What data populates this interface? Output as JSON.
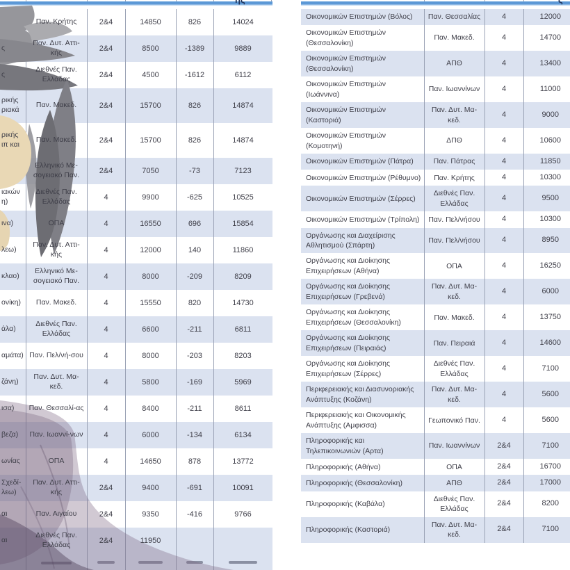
{
  "palette": {
    "stripe": "#dbe2f0",
    "separator": "#99a1b4",
    "header_rule_blue": "#4d8ed2",
    "text": "#3f3f49",
    "silhouette_hair_gray": "#7a7a80",
    "silhouette_skin_beige": "#e9d8b5",
    "silhouette_body_mauve": "#9c84a2"
  },
  "left_table": {
    "header_remnant": "ης",
    "columns": [
      "dept",
      "univ",
      "years",
      "v1",
      "v2",
      "v3"
    ],
    "rows": [
      {
        "dept": "",
        "univ": "Παν. Κρήτης",
        "years": "2&4",
        "v1": "14850",
        "v2": "826",
        "v3": "14024"
      },
      {
        "dept": "ς",
        "univ": "Παν. Δυτ. Αττι-κής",
        "years": "2&4",
        "v1": "8500",
        "v2": "-1389",
        "v3": "9889"
      },
      {
        "dept": "ς",
        "univ": "Διεθνές Παν. Ελλάδας",
        "years": "2&4",
        "v1": "4500",
        "v2": "-1612",
        "v3": "6112"
      },
      {
        "dept": "ρικής ριακά",
        "univ": "Παν. Μακεδ.",
        "years": "2&4",
        "v1": "15700",
        "v2": "826",
        "v3": "14874",
        "tall": true
      },
      {
        "dept": "ρικής ιπ και",
        "univ": "Παν. Μακεδ.",
        "years": "2&4",
        "v1": "15700",
        "v2": "826",
        "v3": "14874",
        "tall": true
      },
      {
        "dept": "",
        "univ": "Ελληνικό Με-σογειακό Παν.",
        "years": "2&4",
        "v1": "7050",
        "v2": "-73",
        "v3": "7123"
      },
      {
        "dept": "ιακών η)",
        "univ": "Διεθνές Παν. Ελλάδας",
        "years": "4",
        "v1": "9900",
        "v2": "-625",
        "v3": "10525"
      },
      {
        "dept": "ινα)",
        "univ": "ΟΠΑ",
        "years": "4",
        "v1": "16550",
        "v2": "696",
        "v3": "15854"
      },
      {
        "dept": "λεω)",
        "univ": "Παν. Δυτ. Αττι-κής",
        "years": "4",
        "v1": "12000",
        "v2": "140",
        "v3": "11860"
      },
      {
        "dept": "κλαο)",
        "univ": "Ελληνικό Με-σογειακό Παν.",
        "years": "4",
        "v1": "8000",
        "v2": "-209",
        "v3": "8209"
      },
      {
        "dept": "ονίκη)",
        "univ": "Παν. Μακεδ.",
        "years": "4",
        "v1": "15550",
        "v2": "820",
        "v3": "14730"
      },
      {
        "dept": "άλα)",
        "univ": "Διεθνές Παν. Ελλάδας",
        "years": "4",
        "v1": "6600",
        "v2": "-211",
        "v3": "6811"
      },
      {
        "dept": "αμάτα)",
        "univ": "Παν. Πελ/νή-σου",
        "years": "4",
        "v1": "8000",
        "v2": "-203",
        "v3": "8203"
      },
      {
        "dept": "ζάνη)",
        "univ": "Παν. Δυτ. Μα-κεδ.",
        "years": "4",
        "v1": "5800",
        "v2": "-169",
        "v3": "5969"
      },
      {
        "dept": "ισα)",
        "univ": "Παν. Θεσσαλί-ας",
        "years": "4",
        "v1": "8400",
        "v2": "-211",
        "v3": "8611"
      },
      {
        "dept": "βεζα)",
        "univ": "Παν. Ιωαννί-νων",
        "years": "4",
        "v1": "6000",
        "v2": "-134",
        "v3": "6134"
      },
      {
        "dept": "ωνίας",
        "univ": "ΟΠΑ",
        "years": "4",
        "v1": "14650",
        "v2": "878",
        "v3": "13772"
      },
      {
        "dept": "Σχεδί- λεω)",
        "univ": "Παν. Δυτ. Αττι-κής",
        "years": "2&4",
        "v1": "9400",
        "v2": "-691",
        "v3": "10091"
      },
      {
        "dept": "αι",
        "univ": "Παν. Αιγαίου",
        "years": "2&4",
        "v1": "9350",
        "v2": "-416",
        "v3": "9766"
      },
      {
        "dept": "αι",
        "univ": "Διεθνές Παν. Ελλάδας",
        "years": "2&4",
        "v1": "11950",
        "v2": "",
        "v3": ""
      },
      {
        "dept": "",
        "univ": "",
        "years": "",
        "v1": "",
        "v2": "",
        "v3": "",
        "smudge": true
      }
    ]
  },
  "right_table": {
    "header_remnant": "ς",
    "columns": [
      "dept",
      "univ",
      "years",
      "v1"
    ],
    "rows": [
      {
        "dept": "Οικονομικών Επιστημών (Βόλος)",
        "univ": "Παν. Θεσσαλίας",
        "years": "4",
        "v1": "12000"
      },
      {
        "dept": "Οικονομικών Επιστημών (Θεσσαλονίκη)",
        "univ": "Παν. Μακεδ.",
        "years": "4",
        "v1": "14700"
      },
      {
        "dept": "Οικονομικών Επιστημών (Θεσσαλονίκη)",
        "univ": "ΑΠΘ",
        "years": "4",
        "v1": "13400"
      },
      {
        "dept": "Οικονομικών Επιστημών (Ιωάννινα)",
        "univ": "Παν. Ιωαννίνων",
        "years": "4",
        "v1": "11000"
      },
      {
        "dept": "Οικονομικών Επιστημών (Καστοριά)",
        "univ": "Παν. Δυτ. Μα-κεδ.",
        "years": "4",
        "v1": "9000"
      },
      {
        "dept": "Οικονομικών Επιστημών (Κομοτηνή)",
        "univ": "ΔΠΘ",
        "years": "4",
        "v1": "10600"
      },
      {
        "dept": "Οικονομικών Επιστημών (Πάτρα)",
        "univ": "Παν. Πάτρας",
        "years": "4",
        "v1": "11850"
      },
      {
        "dept": "Οικονομικών Επιστημών (Ρέθυμνο)",
        "univ": "Παν. Κρήτης",
        "years": "4",
        "v1": "10300"
      },
      {
        "dept": "Οικονομικών Επιστημών (Σέρρες)",
        "univ": "Διεθνές Παν. Ελλάδας",
        "years": "4",
        "v1": "9500"
      },
      {
        "dept": "Οικονομικών Επιστημών (Τρίπολη)",
        "univ": "Παν. Πελ/νήσου",
        "years": "4",
        "v1": "10300"
      },
      {
        "dept": "Οργάνωσης και Διαχείρισης Αθλητισμού (Σπάρτη)",
        "univ": "Παν. Πελ/νήσου",
        "years": "4",
        "v1": "8950"
      },
      {
        "dept": "Οργάνωσης και Διοίκησης Επιχειρήσεων (Αθήνα)",
        "univ": "ΟΠΑ",
        "years": "4",
        "v1": "16250"
      },
      {
        "dept": "Οργάνωσης και Διοίκησης Επιχειρήσεων (Γρεβενά)",
        "univ": "Παν. Δυτ. Μα-κεδ.",
        "years": "4",
        "v1": "6000"
      },
      {
        "dept": "Οργάνωσης και Διοίκησης Επιχειρήσεων (Θεσσαλονίκη)",
        "univ": "Παν. Μακεδ.",
        "years": "4",
        "v1": "13750"
      },
      {
        "dept": "Οργάνωσης και Διοίκησης Επιχειρήσεων (Πειραιάς)",
        "univ": "Παν. Πειραιά",
        "years": "4",
        "v1": "14600"
      },
      {
        "dept": "Οργάνωσης και Διοίκησης Επιχειρήσεων (Σέρρες)",
        "univ": "Διεθνές Παν. Ελλάδας",
        "years": "4",
        "v1": "7100"
      },
      {
        "dept": "Περιφερειακής και Διασυνοριακής Ανάπτυξης (Κοζάνη)",
        "univ": "Παν. Δυτ. Μα-κεδ.",
        "years": "4",
        "v1": "5600"
      },
      {
        "dept": "Περιφερειακής και Οικονομικής Ανάπτυξης  (Αμφισσα)",
        "univ": "Γεωπονικό Παν.",
        "years": "4",
        "v1": "5600"
      },
      {
        "dept": "Πληροφορικής  και Τηλεπικοινωνιών (Αρτα)",
        "univ": "Παν. Ιωαννίνων",
        "years": "2&4",
        "v1": "7100"
      },
      {
        "dept": "Πληροφορικής (Αθήνα)",
        "univ": "ΟΠΑ",
        "years": "2&4",
        "v1": "16700"
      },
      {
        "dept": "Πληροφορικής (Θεσσαλονίκη)",
        "univ": "ΑΠΘ",
        "years": "2&4",
        "v1": "17000"
      },
      {
        "dept": "Πληροφορικής (Καβάλα)",
        "univ": "Διεθνές Παν. Ελλάδας",
        "years": "2&4",
        "v1": "8200"
      },
      {
        "dept": "Πληροφορικής (Καστοριά)",
        "univ": "Παν. Δυτ. Μα-κεδ.",
        "years": "2&4",
        "v1": "7100"
      }
    ]
  }
}
